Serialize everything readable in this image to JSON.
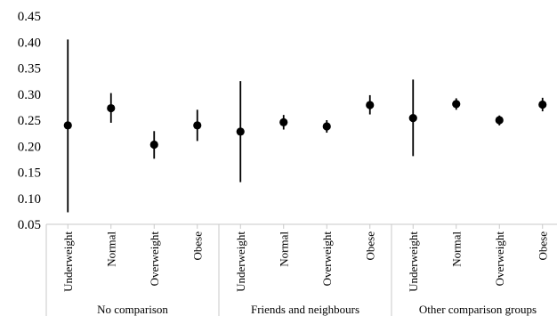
{
  "chart_data": {
    "type": "scatter",
    "variant": "point-with-error-bars",
    "ylim": [
      0.05,
      0.45
    ],
    "yticks": [
      "0.05",
      "0.10",
      "0.15",
      "0.20",
      "0.25",
      "0.30",
      "0.35",
      "0.40",
      "0.45"
    ],
    "grid": false,
    "legend": "none",
    "marker_color": "#000000",
    "groups": [
      {
        "label": "No comparison",
        "points": [
          {
            "category": "Underweight",
            "value": 0.24,
            "low": 0.073,
            "high": 0.405
          },
          {
            "category": "Normal",
            "value": 0.273,
            "low": 0.245,
            "high": 0.302
          },
          {
            "category": "Overweight",
            "value": 0.203,
            "low": 0.176,
            "high": 0.229
          },
          {
            "category": "Obese",
            "value": 0.24,
            "low": 0.21,
            "high": 0.27
          }
        ]
      },
      {
        "label": "Friends and neighbours",
        "points": [
          {
            "category": "Underweight",
            "value": 0.228,
            "low": 0.131,
            "high": 0.325
          },
          {
            "category": "Normal",
            "value": 0.246,
            "low": 0.232,
            "high": 0.26
          },
          {
            "category": "Overweight",
            "value": 0.238,
            "low": 0.226,
            "high": 0.25
          },
          {
            "category": "Obese",
            "value": 0.279,
            "low": 0.261,
            "high": 0.298
          }
        ]
      },
      {
        "label": "Other comparison groups",
        "points": [
          {
            "category": "Underweight",
            "value": 0.254,
            "low": 0.181,
            "high": 0.328
          },
          {
            "category": "Normal",
            "value": 0.281,
            "low": 0.27,
            "high": 0.292
          },
          {
            "category": "Overweight",
            "value": 0.25,
            "low": 0.24,
            "high": 0.259
          },
          {
            "category": "Obese",
            "value": 0.28,
            "low": 0.267,
            "high": 0.293
          }
        ]
      }
    ]
  }
}
